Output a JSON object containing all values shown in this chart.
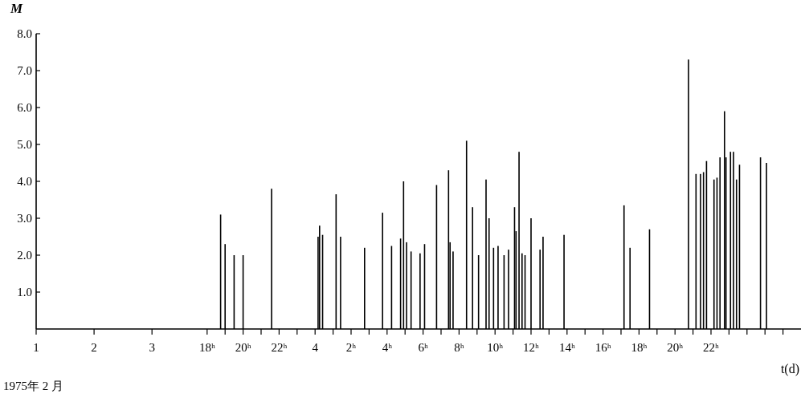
{
  "chart_data": [
    {
      "type": "bar",
      "ylabel": "M",
      "xlim": [
        "1975-02-01",
        "1975-02-03T17:15"
      ],
      "ylim": [
        0,
        8
      ],
      "xticks": [
        {
          "value": "1975-02-01",
          "label": "1"
        },
        {
          "value": "1975-02-02",
          "label": "2"
        },
        {
          "value": "1975-02-03",
          "label": "3"
        }
      ],
      "yticks": [
        {
          "value": 1,
          "label": "1.0"
        },
        {
          "value": 2,
          "label": "2.0"
        },
        {
          "value": 3,
          "label": "3.0"
        },
        {
          "value": 4,
          "label": "4.0"
        },
        {
          "value": 5,
          "label": "5.0"
        },
        {
          "value": 6,
          "label": "6.0"
        },
        {
          "value": 7,
          "label": "7.0"
        },
        {
          "value": 8,
          "label": "8.0"
        }
      ],
      "annotations": [
        "1975年 2 月"
      ]
    },
    {
      "type": "bar",
      "color": "#000000",
      "xlabel": "t(d)",
      "xlim": [
        "1975-02-03T17:15",
        "1975-02-05T03:00"
      ],
      "ylim": [
        0,
        8
      ],
      "tick_labels": "x",
      "x": [
        "1975-02-03T18:45",
        "1975-02-03T19:00",
        "1975-02-03T19:30",
        "1975-02-03T20:00",
        "1975-02-03T21:35",
        "1975-02-04T00:10",
        "1975-02-04T00:15",
        "1975-02-04T00:25",
        "1975-02-04T01:10",
        "1975-02-04T01:25",
        "1975-02-04T02:45",
        "1975-02-04T03:45",
        "1975-02-04T04:15",
        "1975-02-04T04:45",
        "1975-02-04T04:55",
        "1975-02-04T05:05",
        "1975-02-04T05:20",
        "1975-02-04T05:50",
        "1975-02-04T06:05",
        "1975-02-04T06:45",
        "1975-02-04T07:25",
        "1975-02-04T07:30",
        "1975-02-04T07:40",
        "1975-02-04T08:25",
        "1975-02-04T08:45",
        "1975-02-04T09:05",
        "1975-02-04T09:30",
        "1975-02-04T09:40",
        "1975-02-04T09:55",
        "1975-02-04T10:10",
        "1975-02-04T10:30",
        "1975-02-04T10:45",
        "1975-02-04T11:05",
        "1975-02-04T11:10",
        "1975-02-04T11:20",
        "1975-02-04T11:30",
        "1975-02-04T11:40",
        "1975-02-04T12:00",
        "1975-02-04T12:30",
        "1975-02-04T12:40",
        "1975-02-04T13:50",
        "1975-02-04T17:10",
        "1975-02-04T17:30",
        "1975-02-04T18:35",
        "1975-02-04T20:45",
        "1975-02-04T21:10",
        "1975-02-04T21:25",
        "1975-02-04T21:35",
        "1975-02-04T21:45",
        "1975-02-04T22:10",
        "1975-02-04T22:20",
        "1975-02-04T22:30",
        "1975-02-04T22:45",
        "1975-02-04T22:50",
        "1975-02-04T23:05",
        "1975-02-04T23:15",
        "1975-02-04T23:25",
        "1975-02-04T23:35",
        "1975-02-05T00:45",
        "1975-02-05T01:05"
      ],
      "values": [
        3.1,
        2.3,
        2.0,
        2.0,
        3.8,
        2.5,
        2.8,
        2.55,
        3.65,
        2.5,
        2.2,
        3.15,
        2.25,
        2.45,
        4.0,
        2.35,
        2.1,
        2.05,
        2.3,
        3.9,
        4.3,
        2.35,
        2.1,
        5.1,
        3.3,
        2.0,
        4.05,
        3.0,
        2.2,
        2.25,
        2.0,
        2.15,
        3.3,
        2.65,
        4.8,
        2.05,
        2.0,
        3.0,
        2.15,
        2.5,
        2.55,
        3.35,
        2.2,
        2.7,
        7.3,
        4.2,
        4.2,
        4.25,
        4.55,
        4.05,
        4.1,
        4.65,
        5.9,
        4.65,
        4.8,
        4.8,
        4.05,
        4.45,
        4.65,
        4.5
      ],
      "xticks": [
        {
          "value": "1975-02-03T18:00",
          "label": "18ʰ"
        },
        {
          "value": "1975-02-03T19:00",
          "label": null
        },
        {
          "value": "1975-02-03T20:00",
          "label": "20ʰ"
        },
        {
          "value": "1975-02-03T21:00",
          "label": null
        },
        {
          "value": "1975-02-03T22:00",
          "label": "22ʰ"
        },
        {
          "value": "1975-02-03T23:00",
          "label": null
        },
        {
          "value": "1975-02-04T00:00",
          "label": "4"
        },
        {
          "value": "1975-02-04T01:00",
          "label": null
        },
        {
          "value": "1975-02-04T02:00",
          "label": "2ʰ"
        },
        {
          "value": "1975-02-04T03:00",
          "label": null
        },
        {
          "value": "1975-02-04T04:00",
          "label": "4ʰ"
        },
        {
          "value": "1975-02-04T05:00",
          "label": null
        },
        {
          "value": "1975-02-04T06:00",
          "label": "6ʰ"
        },
        {
          "value": "1975-02-04T07:00",
          "label": null
        },
        {
          "value": "1975-02-04T08:00",
          "label": "8ʰ"
        },
        {
          "value": "1975-02-04T09:00",
          "label": null
        },
        {
          "value": "1975-02-04T10:00",
          "label": "10ʰ"
        },
        {
          "value": "1975-02-04T11:00",
          "label": null
        },
        {
          "value": "1975-02-04T12:00",
          "label": "12ʰ"
        },
        {
          "value": "1975-02-04T13:00",
          "label": null
        },
        {
          "value": "1975-02-04T14:00",
          "label": "14ʰ"
        },
        {
          "value": "1975-02-04T15:00",
          "label": null
        },
        {
          "value": "1975-02-04T16:00",
          "label": "16ʰ"
        },
        {
          "value": "1975-02-04T17:00",
          "label": null
        },
        {
          "value": "1975-02-04T18:00",
          "label": "18ʰ"
        },
        {
          "value": "1975-02-04T19:00",
          "label": null
        },
        {
          "value": "1975-02-04T20:00",
          "label": "20ʰ"
        },
        {
          "value": "1975-02-04T21:00",
          "label": null
        },
        {
          "value": "1975-02-04T22:00",
          "label": "22ʰ"
        },
        {
          "value": "1975-02-04T23:00",
          "label": null
        },
        {
          "value": "1975-02-05T00:00",
          "label": null
        },
        {
          "value": "1975-02-05T01:00",
          "label": null
        },
        {
          "value": "1975-02-05T02:00",
          "label": null
        }
      ]
    }
  ]
}
